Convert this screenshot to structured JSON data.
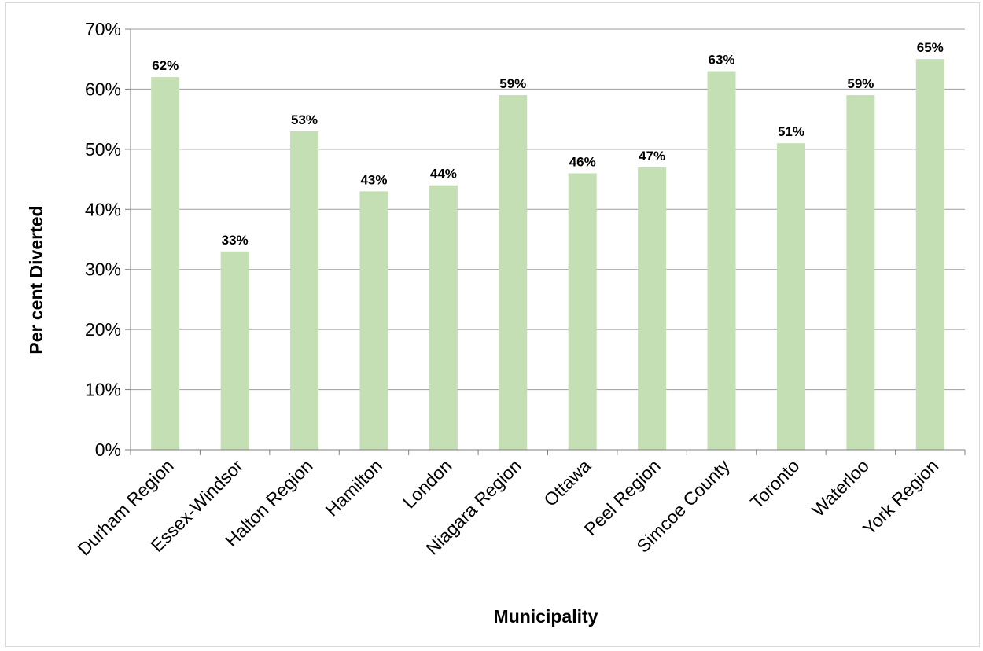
{
  "chart_data": {
    "type": "bar",
    "title": "",
    "xlabel": "Municipality",
    "ylabel": "Per cent Diverted",
    "categories": [
      "Durham Region",
      "Essex-Windsor",
      "Halton Region",
      "Hamilton",
      "London",
      "Niagara Region",
      "Ottawa",
      "Peel Region",
      "Simcoe County",
      "Toronto",
      "Waterloo",
      "York Region"
    ],
    "values": [
      62,
      33,
      53,
      43,
      44,
      59,
      46,
      47,
      63,
      51,
      59,
      65
    ],
    "data_labels": [
      "62%",
      "33%",
      "53%",
      "43%",
      "44%",
      "59%",
      "46%",
      "47%",
      "63%",
      "51%",
      "59%",
      "65%"
    ],
    "value_unit": "%",
    "ylim": [
      0,
      70
    ],
    "ytick_step": 10,
    "grid": true,
    "legend": "none",
    "bar_color": "#c4dfb3"
  }
}
